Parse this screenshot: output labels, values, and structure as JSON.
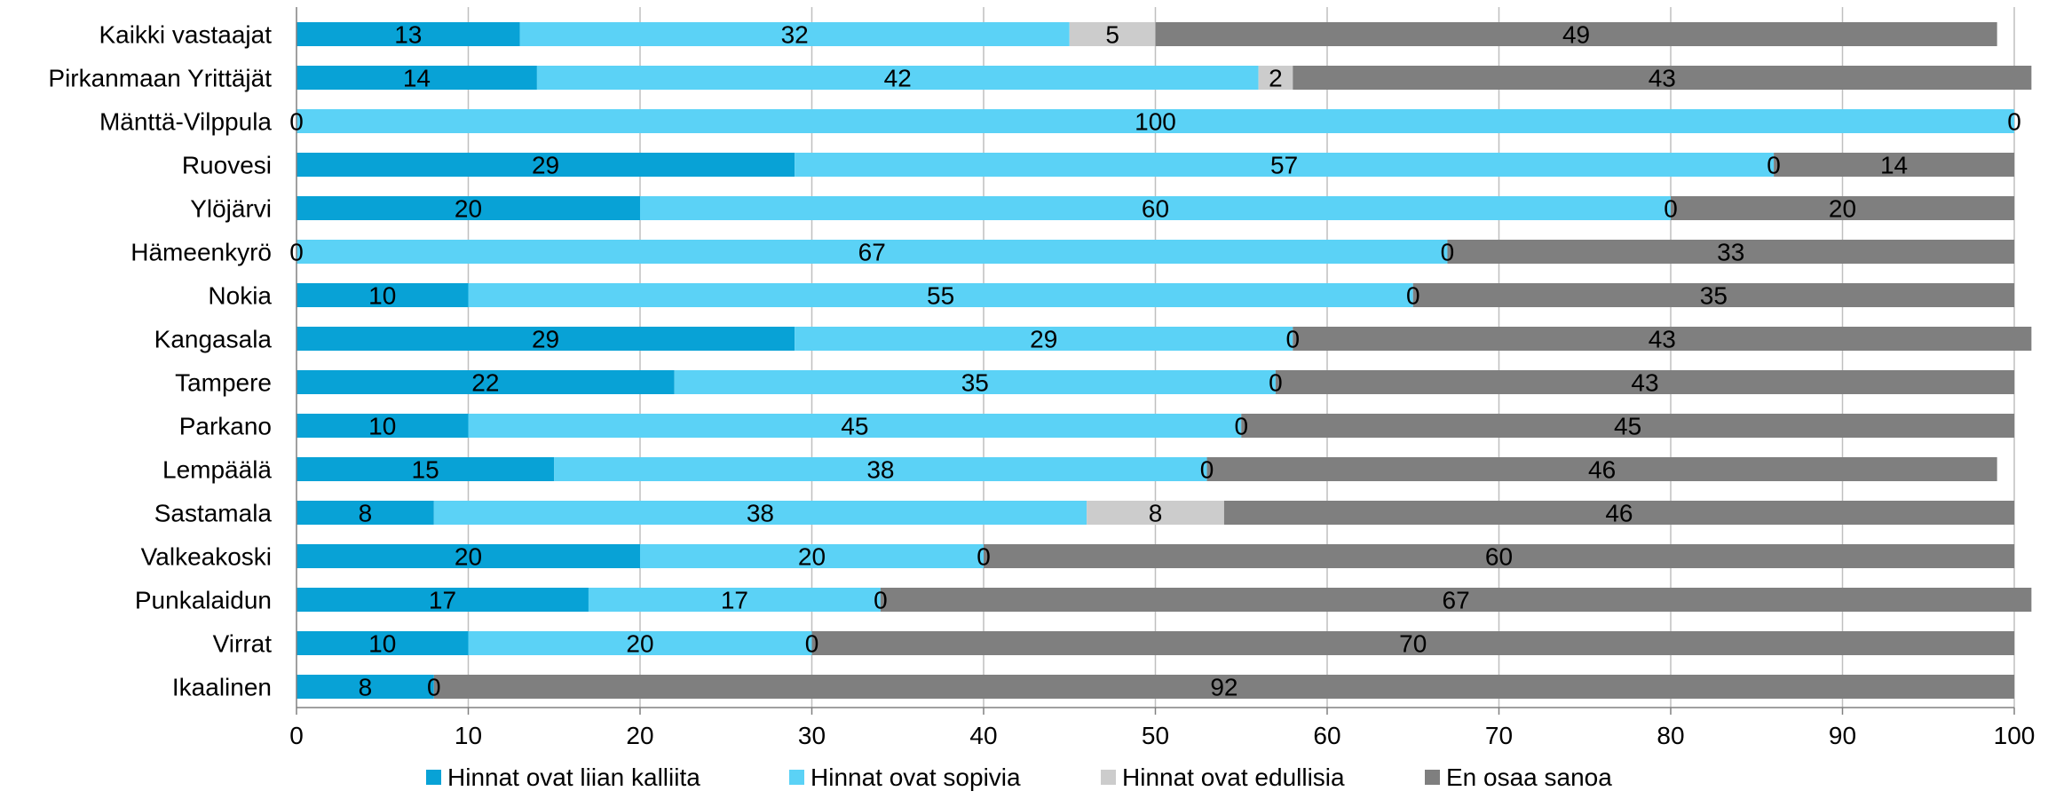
{
  "chart_data": {
    "type": "bar",
    "orientation": "horizontal",
    "stacked": true,
    "categories": [
      "Kaikki vastaajat",
      "Pirkanmaan Yrittäjät",
      "Mänttä-Vilppula",
      "Ruovesi",
      "Ylöjärvi",
      "Hämeenkyrö",
      "Nokia",
      "Kangasala",
      "Tampere",
      "Parkano",
      "Lempäälä",
      "Sastamala",
      "Valkeakoski",
      "Punkalaidun",
      "Virrat",
      "Ikaalinen"
    ],
    "series": [
      {
        "name": "Hinnat ovat liian kalliita",
        "color": "#08A2D6",
        "values": [
          13,
          14,
          0,
          29,
          20,
          0,
          10,
          29,
          22,
          10,
          15,
          8,
          20,
          17,
          10,
          8
        ]
      },
      {
        "name": "Hinnat ovat sopivia",
        "color": "#5BD2F6",
        "values": [
          32,
          42,
          100,
          57,
          60,
          67,
          55,
          29,
          35,
          45,
          38,
          38,
          20,
          17,
          20,
          0
        ]
      },
      {
        "name": "Hinnat ovat edullisia",
        "color": "#CCCCCC",
        "values": [
          5,
          2,
          0,
          0,
          0,
          0,
          0,
          0,
          0,
          0,
          0,
          8,
          0,
          0,
          0,
          0
        ]
      },
      {
        "name": "En osaa sanoa",
        "color": "#7F7F7F",
        "values": [
          49,
          43,
          0,
          14,
          20,
          33,
          35,
          43,
          43,
          45,
          46,
          46,
          60,
          67,
          70,
          92
        ]
      }
    ],
    "segment_labels": [
      [
        "13",
        "32",
        "5",
        "49"
      ],
      [
        "14",
        "42",
        "2",
        "43"
      ],
      [
        "0",
        "100",
        "",
        "0"
      ],
      [
        "29",
        "57",
        "0",
        "14"
      ],
      [
        "20",
        "60",
        "0",
        "20"
      ],
      [
        "0",
        "67",
        "0",
        "33"
      ],
      [
        "10",
        "55",
        "0",
        "35"
      ],
      [
        "29",
        "29",
        "0",
        "43"
      ],
      [
        "22",
        "35",
        "0",
        "43"
      ],
      [
        "10",
        "45",
        "0",
        "45"
      ],
      [
        "15",
        "38",
        "0",
        "46"
      ],
      [
        "8",
        "38",
        "8",
        "46"
      ],
      [
        "20",
        "20",
        "0",
        "60"
      ],
      [
        "17",
        "17",
        "0",
        "67"
      ],
      [
        "10",
        "20",
        "0",
        "70"
      ],
      [
        "8",
        "",
        "0",
        "92"
      ]
    ],
    "xlim": [
      0,
      100
    ],
    "xticks": [
      0,
      10,
      20,
      30,
      40,
      50,
      60,
      70,
      80,
      90,
      100
    ],
    "grid": "vertical",
    "legend_position": "bottom",
    "title": "",
    "xlabel": "",
    "ylabel": ""
  }
}
